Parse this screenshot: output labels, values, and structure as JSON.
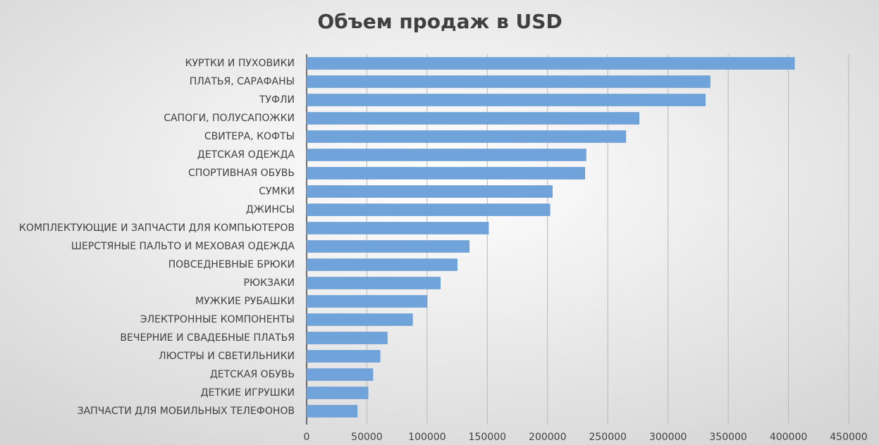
{
  "chart_data": {
    "type": "bar",
    "orientation": "horizontal",
    "title": "Объем продаж в USD",
    "categories": [
      "КУРТКИ И ПУХОВИКИ",
      "ПЛАТЬЯ, САРАФАНЫ",
      "ТУФЛИ",
      "САПОГИ, ПОЛУСАПОЖКИ",
      "СВИТЕРА, КОФТЫ",
      "ДЕТСКАЯ ОДЕЖДА",
      "СПОРТИВНАЯ ОБУВЬ",
      "СУМКИ",
      "ДЖИНСЫ",
      "КОМПЛЕКТУЮЩИЕ И ЗАПЧАСТИ ДЛЯ КОМПЬЮТЕРОВ",
      "ШЕРСТЯНЫЕ ПАЛЬТО И МЕХОВАЯ ОДЕЖДА",
      "ПОВСЕДНЕВНЫЕ БРЮКИ",
      "РЮКЗАКИ",
      "МУЖКИЕ РУБАШКИ",
      "ЭЛЕКТРОННЫЕ КОМПОНЕНТЫ",
      "ВЕЧЕРНИЕ И СВАДЕБНЫЕ ПЛАТЬЯ",
      "ЛЮСТРЫ И СВЕТИЛЬНИКИ",
      "ДЕТСКАЯ ОБУВЬ",
      "ДЕТКИЕ ИГРУШКИ",
      "ЗАПЧАСТИ ДЛЯ МОБИЛЬНЫХ ТЕЛЕФОНОВ"
    ],
    "values": [
      405000,
      335000,
      331000,
      276000,
      265000,
      232000,
      231000,
      204000,
      202000,
      151000,
      135000,
      125000,
      111000,
      100000,
      88000,
      67000,
      61000,
      55000,
      51000,
      42000
    ],
    "color": "#6fa3d9",
    "xlim": [
      0,
      450000
    ],
    "xticks": [
      0,
      50000,
      100000,
      150000,
      200000,
      250000,
      300000,
      350000,
      400000,
      450000
    ],
    "grid": true
  }
}
